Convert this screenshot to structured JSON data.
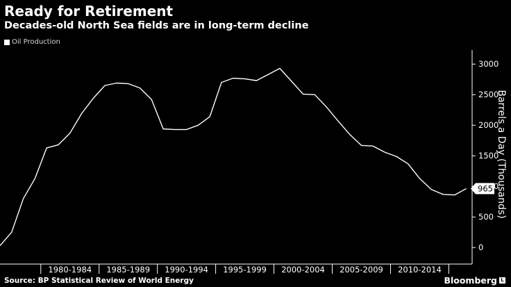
{
  "title": "Ready for Retirement",
  "subtitle": "Decades-old North Sea fields are in long-term decline",
  "legend": {
    "label": "Oil Production"
  },
  "source": "Source: BP Statistical Review of World Energy",
  "brand": "Bloomberg",
  "brand_mark": "L",
  "colors": {
    "background": "#000000",
    "line": "#ffffff",
    "axis": "#ffffff",
    "gridline": "#555555"
  },
  "chart_data": {
    "type": "line",
    "title": "Ready for Retirement",
    "subtitle": "Decades-old North Sea fields are in long-term decline",
    "xlabel": "",
    "ylabel": "Barrels a Day (Thousands)",
    "ylim": [
      -270,
      3230
    ],
    "xlim": [
      1975,
      2015.5
    ],
    "yticks": [
      0,
      500,
      1000,
      1500,
      2000,
      2500,
      3000
    ],
    "ytick_labels": [
      "0",
      "500",
      "1000",
      "1500",
      "2000",
      "2500",
      "3000"
    ],
    "xtick_labels": [
      "1980-1984",
      "1985-1989",
      "1990-1994",
      "1995-1999",
      "2000-2004",
      "2005-2009",
      "2010-2014"
    ],
    "xtick_ranges": [
      [
        1979,
        1983
      ],
      [
        1984,
        1988
      ],
      [
        1989,
        1993
      ],
      [
        1994,
        1998
      ],
      [
        1999,
        2003
      ],
      [
        2004,
        2008
      ],
      [
        2009,
        2013
      ]
    ],
    "grid": false,
    "legend_position": "top-left",
    "end_label": "965",
    "series": [
      {
        "name": "Oil Production",
        "x": [
          1975,
          1976,
          1977,
          1978,
          1979,
          1980,
          1981,
          1982,
          1983,
          1984,
          1985,
          1986,
          1987,
          1988,
          1989,
          1990,
          1991,
          1992,
          1993,
          1994,
          1995,
          1996,
          1997,
          1998,
          1999,
          2000,
          2001,
          2002,
          2003,
          2004,
          2005,
          2006,
          2007,
          2008,
          2009,
          2010,
          2011,
          2012,
          2013,
          2014,
          2015
        ],
        "values": [
          30,
          250,
          800,
          1130,
          1630,
          1680,
          1870,
          2190,
          2440,
          2650,
          2690,
          2680,
          2610,
          2420,
          1940,
          1930,
          1930,
          2000,
          2140,
          2700,
          2770,
          2760,
          2730,
          2830,
          2930,
          2720,
          2510,
          2500,
          2300,
          2070,
          1850,
          1670,
          1660,
          1560,
          1490,
          1370,
          1130,
          950,
          870,
          860,
          965
        ]
      }
    ]
  }
}
